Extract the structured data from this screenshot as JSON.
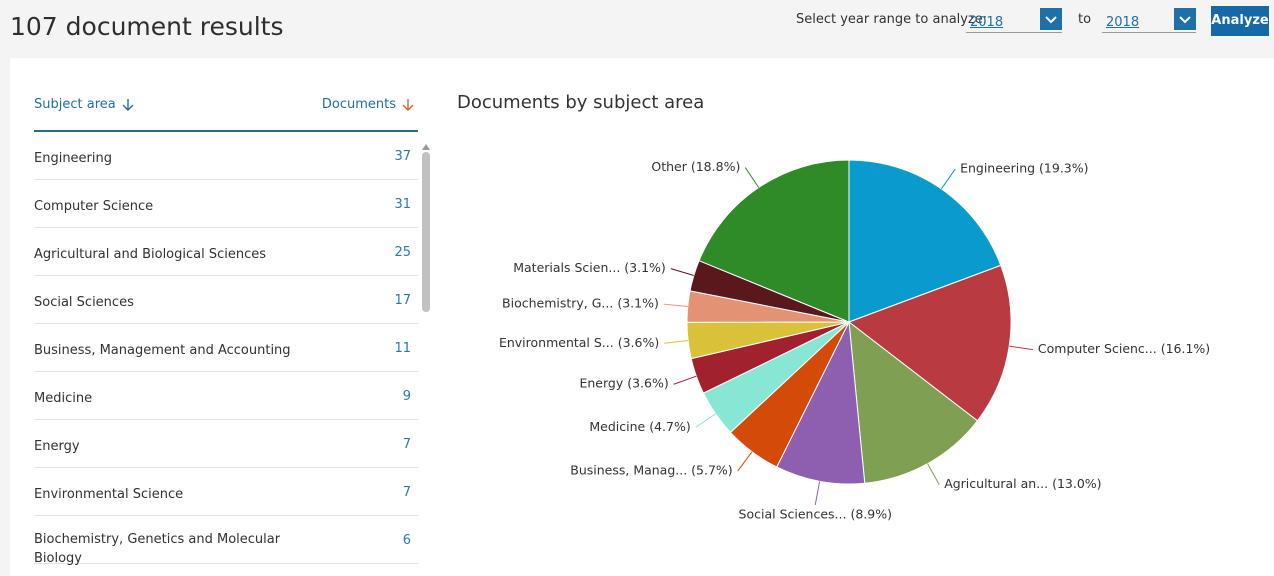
{
  "header": {
    "title": "107 document results"
  },
  "year_range": {
    "label": "Select year range to analyze:",
    "from": "2018",
    "to_label": "to",
    "to": "2018",
    "button": "Analyze"
  },
  "table": {
    "headers": [
      "Subject area",
      "Documents"
    ],
    "rows": [
      [
        "Engineering",
        37
      ],
      [
        "Computer Science",
        31
      ],
      [
        "Agricultural and Biological Sciences",
        25
      ],
      [
        "Social Sciences",
        17
      ],
      [
        "Business, Management and Accounting",
        11
      ],
      [
        "Medicine",
        9
      ],
      [
        "Energy",
        7
      ],
      [
        "Environmental Science",
        7
      ],
      [
        "Biochemistry, Genetics and Molecular Biology",
        6
      ]
    ]
  },
  "chart_data": {
    "type": "pie",
    "title": "Documents by subject area",
    "values": [
      19.3,
      16.1,
      13.0,
      8.9,
      5.7,
      4.7,
      3.6,
      3.6,
      3.1,
      3.1,
      18.8
    ],
    "value_labels": [
      "Engineering (19.3%)",
      "Computer Scienc... (16.1%)",
      "Agricultural an... (13.0%)",
      "Social Sciences... (8.9%)",
      "Business, Manag... (5.7%)",
      "Medicine (4.7%)",
      "Energy (3.6%)",
      "Environmental S... (3.6%)",
      "Biochemistry, G... (3.1%)",
      "Materials Scien... (3.1%)",
      "Other (18.8%)"
    ],
    "colors": [
      "#0a9bcd",
      "#b93a40",
      "#7f9f52",
      "#8e5fb0",
      "#d44a08",
      "#88e6d5",
      "#a1212f",
      "#d9c23a",
      "#e39373",
      "#5a181c",
      "#2e8b27"
    ]
  }
}
